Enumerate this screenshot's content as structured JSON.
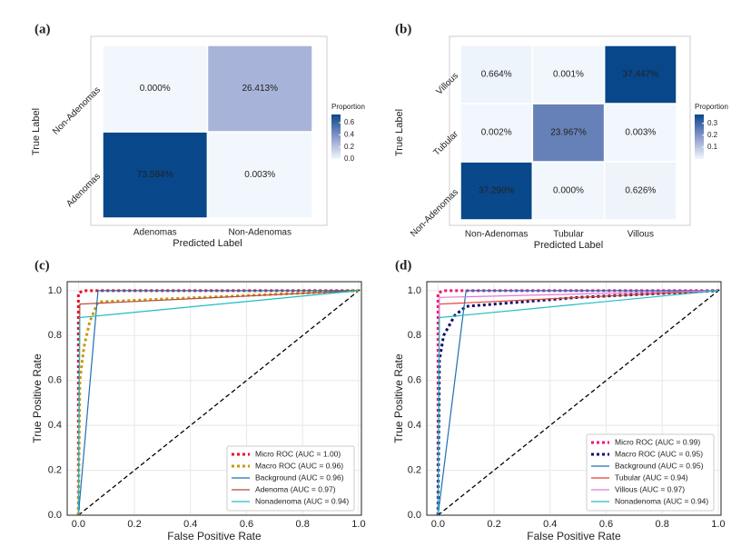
{
  "chart_data": [
    {
      "type": "heatmap",
      "panel_label": "(a)",
      "x_label": "Predicted Label",
      "y_label": "True Label",
      "categories": [
        "Adenomas",
        "Non-Adenomas"
      ],
      "y_categories": [
        "Adenomas",
        "Non-Adenomas"
      ],
      "values": [
        [
          0.73584,
          3e-05
        ],
        [
          0,
          0.26413
        ]
      ],
      "value_labels": [
        [
          "73.584%",
          "0.003%"
        ],
        [
          "0.000%",
          "26.413%"
        ]
      ],
      "colorbar_title": "Proportion",
      "clim": [
        0,
        0.73584
      ],
      "cticks": [
        {
          "value": 0,
          "label": "0.0"
        },
        0.2,
        0.4,
        0.6
      ],
      "colors": [
        "#f2f7fd",
        "#8a98c9",
        "#08478a"
      ]
    },
    {
      "type": "heatmap",
      "panel_label": "(b)",
      "x_label": "Predicted Label",
      "y_label": "True Label",
      "categories": [
        "Non-Adenomas",
        "Tubular",
        "Villous"
      ],
      "y_categories": [
        "Non-Adenomas",
        "Tubular",
        "Villous"
      ],
      "values": [
        [
          0.3729,
          0,
          0.00626
        ],
        [
          2e-05,
          0.23967,
          3e-05
        ],
        [
          0.00664,
          1e-05,
          0.37447
        ]
      ],
      "value_labels": [
        [
          "37.290%",
          "0.000%",
          "0.626%"
        ],
        [
          "0.002%",
          "23.967%",
          "0.003%"
        ],
        [
          "0.664%",
          "0.001%",
          "37.447%"
        ]
      ],
      "colorbar_title": "Proportion",
      "clim": [
        0,
        0.37447
      ],
      "cticks": [
        0.1,
        0.2,
        0.3
      ],
      "colors": [
        "#f2f7fd",
        "#8a98c9",
        "#08478a"
      ]
    },
    {
      "type": "line",
      "panel_label": "(c)",
      "x_label": "False Positive Rate",
      "y_label": "True Positive Rate",
      "xlim": [
        -0.04,
        1.01
      ],
      "ylim": [
        0,
        1.04
      ],
      "xticks": [
        {
          "value": 0,
          "label": "0.0"
        },
        0.2,
        0.4,
        0.6,
        0.8,
        {
          "value": 1,
          "label": "1.0"
        }
      ],
      "yticks": [
        {
          "value": 0,
          "label": "0.0"
        },
        0.2,
        0.4,
        0.6,
        0.8,
        {
          "value": 1,
          "label": "1.0"
        }
      ],
      "grid": true,
      "diagonal": true,
      "legend": "lower right",
      "series": [
        {
          "name": "Micro ROC (AUC = 1.00)",
          "color": "#e8102a",
          "dash": "dotted",
          "x": [
            0,
            0,
            0.02,
            1
          ],
          "values": [
            0,
            0.99,
            1,
            1
          ]
        },
        {
          "name": "Macro ROC (AUC = 0.96)",
          "color": "#c89a0a",
          "dash": "dotted",
          "x": [
            0,
            0.005,
            0.02,
            0.04,
            0.07,
            1
          ],
          "values": [
            0,
            0.6,
            0.75,
            0.86,
            0.95,
            1
          ]
        },
        {
          "name": "Background (AUC = 0.96)",
          "color": "#1f6fb4",
          "dash": "solid",
          "x": [
            0,
            0.07,
            1
          ],
          "values": [
            0,
            1,
            1
          ]
        },
        {
          "name": "Adenoma (AUC = 0.97)",
          "color": "#b04a3c",
          "dash": "solid",
          "x": [
            0,
            0.005,
            1
          ],
          "values": [
            0,
            0.94,
            1
          ]
        },
        {
          "name": "Nonadenoma (AUC = 0.94)",
          "color": "#1fbcc4",
          "dash": "solid",
          "x": [
            0,
            0.005,
            1
          ],
          "values": [
            0,
            0.88,
            1
          ]
        }
      ]
    },
    {
      "type": "line",
      "panel_label": "(d)",
      "x_label": "False Positive Rate",
      "y_label": "True Positive Rate",
      "xlim": [
        -0.04,
        1.01
      ],
      "ylim": [
        0,
        1.04
      ],
      "xticks": [
        {
          "value": 0,
          "label": "0.0"
        },
        0.2,
        0.4,
        0.6,
        0.8,
        {
          "value": 1,
          "label": "1.0"
        }
      ],
      "yticks": [
        {
          "value": 0,
          "label": "0.0"
        },
        0.2,
        0.4,
        0.6,
        0.8,
        {
          "value": 1,
          "label": "1.0"
        }
      ],
      "grid": true,
      "diagonal": true,
      "legend": "lower right",
      "series": [
        {
          "name": "Micro ROC (AUC = 0.99)",
          "color": "#f0147a",
          "dash": "dotted",
          "x": [
            0,
            0,
            0.02,
            1
          ],
          "values": [
            0,
            0.99,
            1,
            1
          ]
        },
        {
          "name": "Macro ROC (AUC = 0.95)",
          "color": "#0c0f6e",
          "dash": "dotted",
          "x": [
            0,
            0.005,
            0.02,
            0.06,
            0.1,
            0.2,
            0.5,
            1
          ],
          "values": [
            0,
            0.69,
            0.8,
            0.89,
            0.93,
            0.94,
            0.97,
            1
          ]
        },
        {
          "name": "Background (AUC = 0.95)",
          "color": "#1f6fb4",
          "dash": "solid",
          "x": [
            0,
            0.1,
            1
          ],
          "values": [
            0,
            1,
            1
          ]
        },
        {
          "name": "Tubular (AUC = 0.94)",
          "color": "#e8402a",
          "dash": "solid",
          "x": [
            0,
            0.005,
            1
          ],
          "values": [
            0,
            0.94,
            1
          ]
        },
        {
          "name": "Villous (AUC = 0.97)",
          "color": "#e07ad8",
          "dash": "solid",
          "x": [
            0,
            0.005,
            1
          ],
          "values": [
            0,
            0.97,
            1
          ]
        },
        {
          "name": "Nonadenoma (AUC = 0.94)",
          "color": "#1fbcc4",
          "dash": "solid",
          "x": [
            0,
            0.005,
            1
          ],
          "values": [
            0,
            0.88,
            1
          ]
        }
      ]
    }
  ]
}
